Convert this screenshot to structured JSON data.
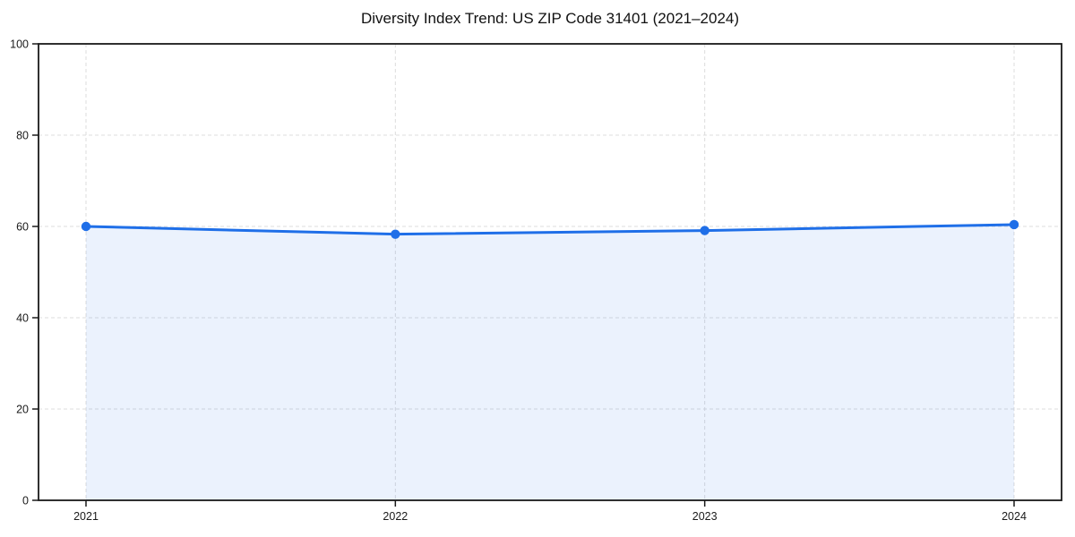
{
  "page": {
    "background_color": "#ffffff"
  },
  "chart_data": {
    "type": "line",
    "subtype": "area-filled-with-markers",
    "title": "Diversity Index Trend: US ZIP Code 31401 (2021–2024)",
    "categories": [
      "2021",
      "2022",
      "2023",
      "2024"
    ],
    "series": [
      {
        "name": "Diversity Index",
        "values": [
          60.0,
          58.3,
          59.1,
          60.4
        ]
      }
    ],
    "xlabel": "",
    "ylabel": "",
    "ylim": [
      0,
      100
    ],
    "y_ticks": [
      0,
      20,
      40,
      60,
      80,
      100
    ],
    "grid": "dashed",
    "grid_on": true,
    "legend_position": "none",
    "marker": "circle",
    "colors": {
      "line": "#1f6fe8",
      "marker": "#1f6fe8",
      "area_fill": "#1f6fe8",
      "area_fill_opacity": 0.09,
      "grid": "#dcdcdc",
      "axis_frame": "#1a1a1a",
      "tick_text": "#1a1a1a",
      "title_text": "#111111"
    }
  }
}
